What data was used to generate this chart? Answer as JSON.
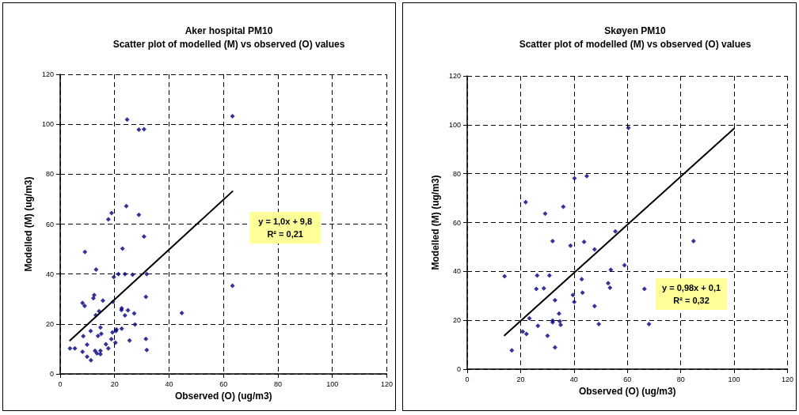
{
  "chart_data": [
    {
      "type": "scatter",
      "title": "Aker hospital PM10",
      "subtitle": "Scatter plot of modelled (M) vs observed (O) values",
      "xlabel": "Observed (O) (ug/m3)",
      "ylabel": "Modelled (M) (ug/m3)",
      "series": [
        {
          "color": "#000080",
          "marker": "diamond",
          "x": [
            3.6,
            5.4,
            9.1,
            8.2,
            9.0,
            8.5,
            9.9,
            8.2,
            9.9,
            11.3,
            11.2,
            13.2,
            12.5,
            12.2,
            13.1,
            14.3,
            15.7,
            13.9,
            15.1,
            14.8,
            12.8,
            13.5,
            14.8,
            14.8,
            16.8,
            17.7,
            18.8,
            19.2,
            19.4,
            19.7,
            20.3,
            20.5,
            20.7,
            21.4,
            22.9,
            22.5,
            22.6,
            22.6,
            23.8,
            23.8,
            24.9,
            25.5,
            26.6,
            27.2,
            27.5,
            31.5,
            31.8,
            31.5,
            31.8,
            63.3,
            44.7,
            24.6,
            28.9,
            30.8,
            63.3,
            17.7,
            18.9,
            24.3,
            28.9,
            30.8
          ],
          "values": [
            10.2,
            10.2,
            48.8,
            28.4,
            27.2,
            15.1,
            11.7,
            8.9,
            6.9,
            5.5,
            17.2,
            41.8,
            31.6,
            30.3,
            23.5,
            25.1,
            29.4,
            15.2,
            16.1,
            18.6,
            9.3,
            8.2,
            9.3,
            7.9,
            11.9,
            10.2,
            13.9,
            16.6,
            28.9,
            38.8,
            12.5,
            17.2,
            17.8,
            40.0,
            50.2,
            25.6,
            26.3,
            18.1,
            23.4,
            40.0,
            25.5,
            13.4,
            39.7,
            24.2,
            19.8,
            30.9,
            40.0,
            14.0,
            9.6,
            35.3,
            24.4,
            101.9,
            97.8,
            98.0,
            103.2,
            61.9,
            64.4,
            67.2,
            63.7,
            55.0
          ]
        },
        {
          "type": "line",
          "color": "#000000",
          "marker": "none",
          "x": [
            3.6,
            63.3
          ],
          "values": [
            13.4,
            73.1
          ]
        }
      ],
      "xlim": [
        0,
        120
      ],
      "ylim": [
        0,
        120
      ],
      "xticks": [
        0,
        20,
        40,
        60,
        80,
        100,
        120
      ],
      "yticks": [
        0,
        20,
        40,
        60,
        80,
        100,
        120
      ],
      "grid": true,
      "annotations": [
        "y = 1,0x + 9,8",
        "R² = 0,21"
      ]
    },
    {
      "type": "scatter",
      "title": "Skøyen PM10",
      "subtitle": "Scatter plot of modelled (M) vs observed (O) values",
      "xlabel": "Observed (O) (ug/m3)",
      "ylabel": "Modelled (M) (ug/m3)",
      "series": [
        {
          "color": "#000080",
          "marker": "diamond",
          "x": [
            21.9,
            29.2,
            36.0,
            55.5,
            32.0,
            38.7,
            43.8,
            47.7,
            53.8,
            58.9,
            14.0,
            26.2,
            30.8,
            42.9,
            25.9,
            28.7,
            52.8,
            53.5,
            66.4,
            43.2,
            39.6,
            40.1,
            32.9,
            47.7,
            34.4,
            23.3,
            32.0,
            32.0,
            34.7,
            35.0,
            26.5,
            49.3,
            68.1,
            20.8,
            22.2,
            30.1,
            32.9,
            16.7,
            60.4,
            40.2,
            44.8,
            84.8
          ],
          "values": [
            68.3,
            63.6,
            66.5,
            56.4,
            52.4,
            50.5,
            52.1,
            49.0,
            40.7,
            42.5,
            38.0,
            38.3,
            38.3,
            36.8,
            32.8,
            33.1,
            35.2,
            33.3,
            32.8,
            31.3,
            30.3,
            27.5,
            28.2,
            25.8,
            22.7,
            20.8,
            19.9,
            19.2,
            19.6,
            18.1,
            17.7,
            18.4,
            18.4,
            15.4,
            14.4,
            13.7,
            8.9,
            7.7,
            98.7,
            78.1,
            79.0,
            52.4
          ]
        },
        {
          "type": "line",
          "color": "#000000",
          "marker": "none",
          "x": [
            14.0,
            100.0
          ],
          "values": [
            13.8,
            98.5
          ]
        }
      ],
      "xlim": [
        0,
        120
      ],
      "ylim": [
        0,
        120
      ],
      "xticks": [
        0,
        20,
        40,
        60,
        80,
        100,
        120
      ],
      "yticks": [
        0,
        20,
        40,
        60,
        80,
        100,
        120
      ],
      "grid": true,
      "annotations": [
        "y = 0,98x + 0,1",
        "R² = 0,32"
      ]
    }
  ]
}
